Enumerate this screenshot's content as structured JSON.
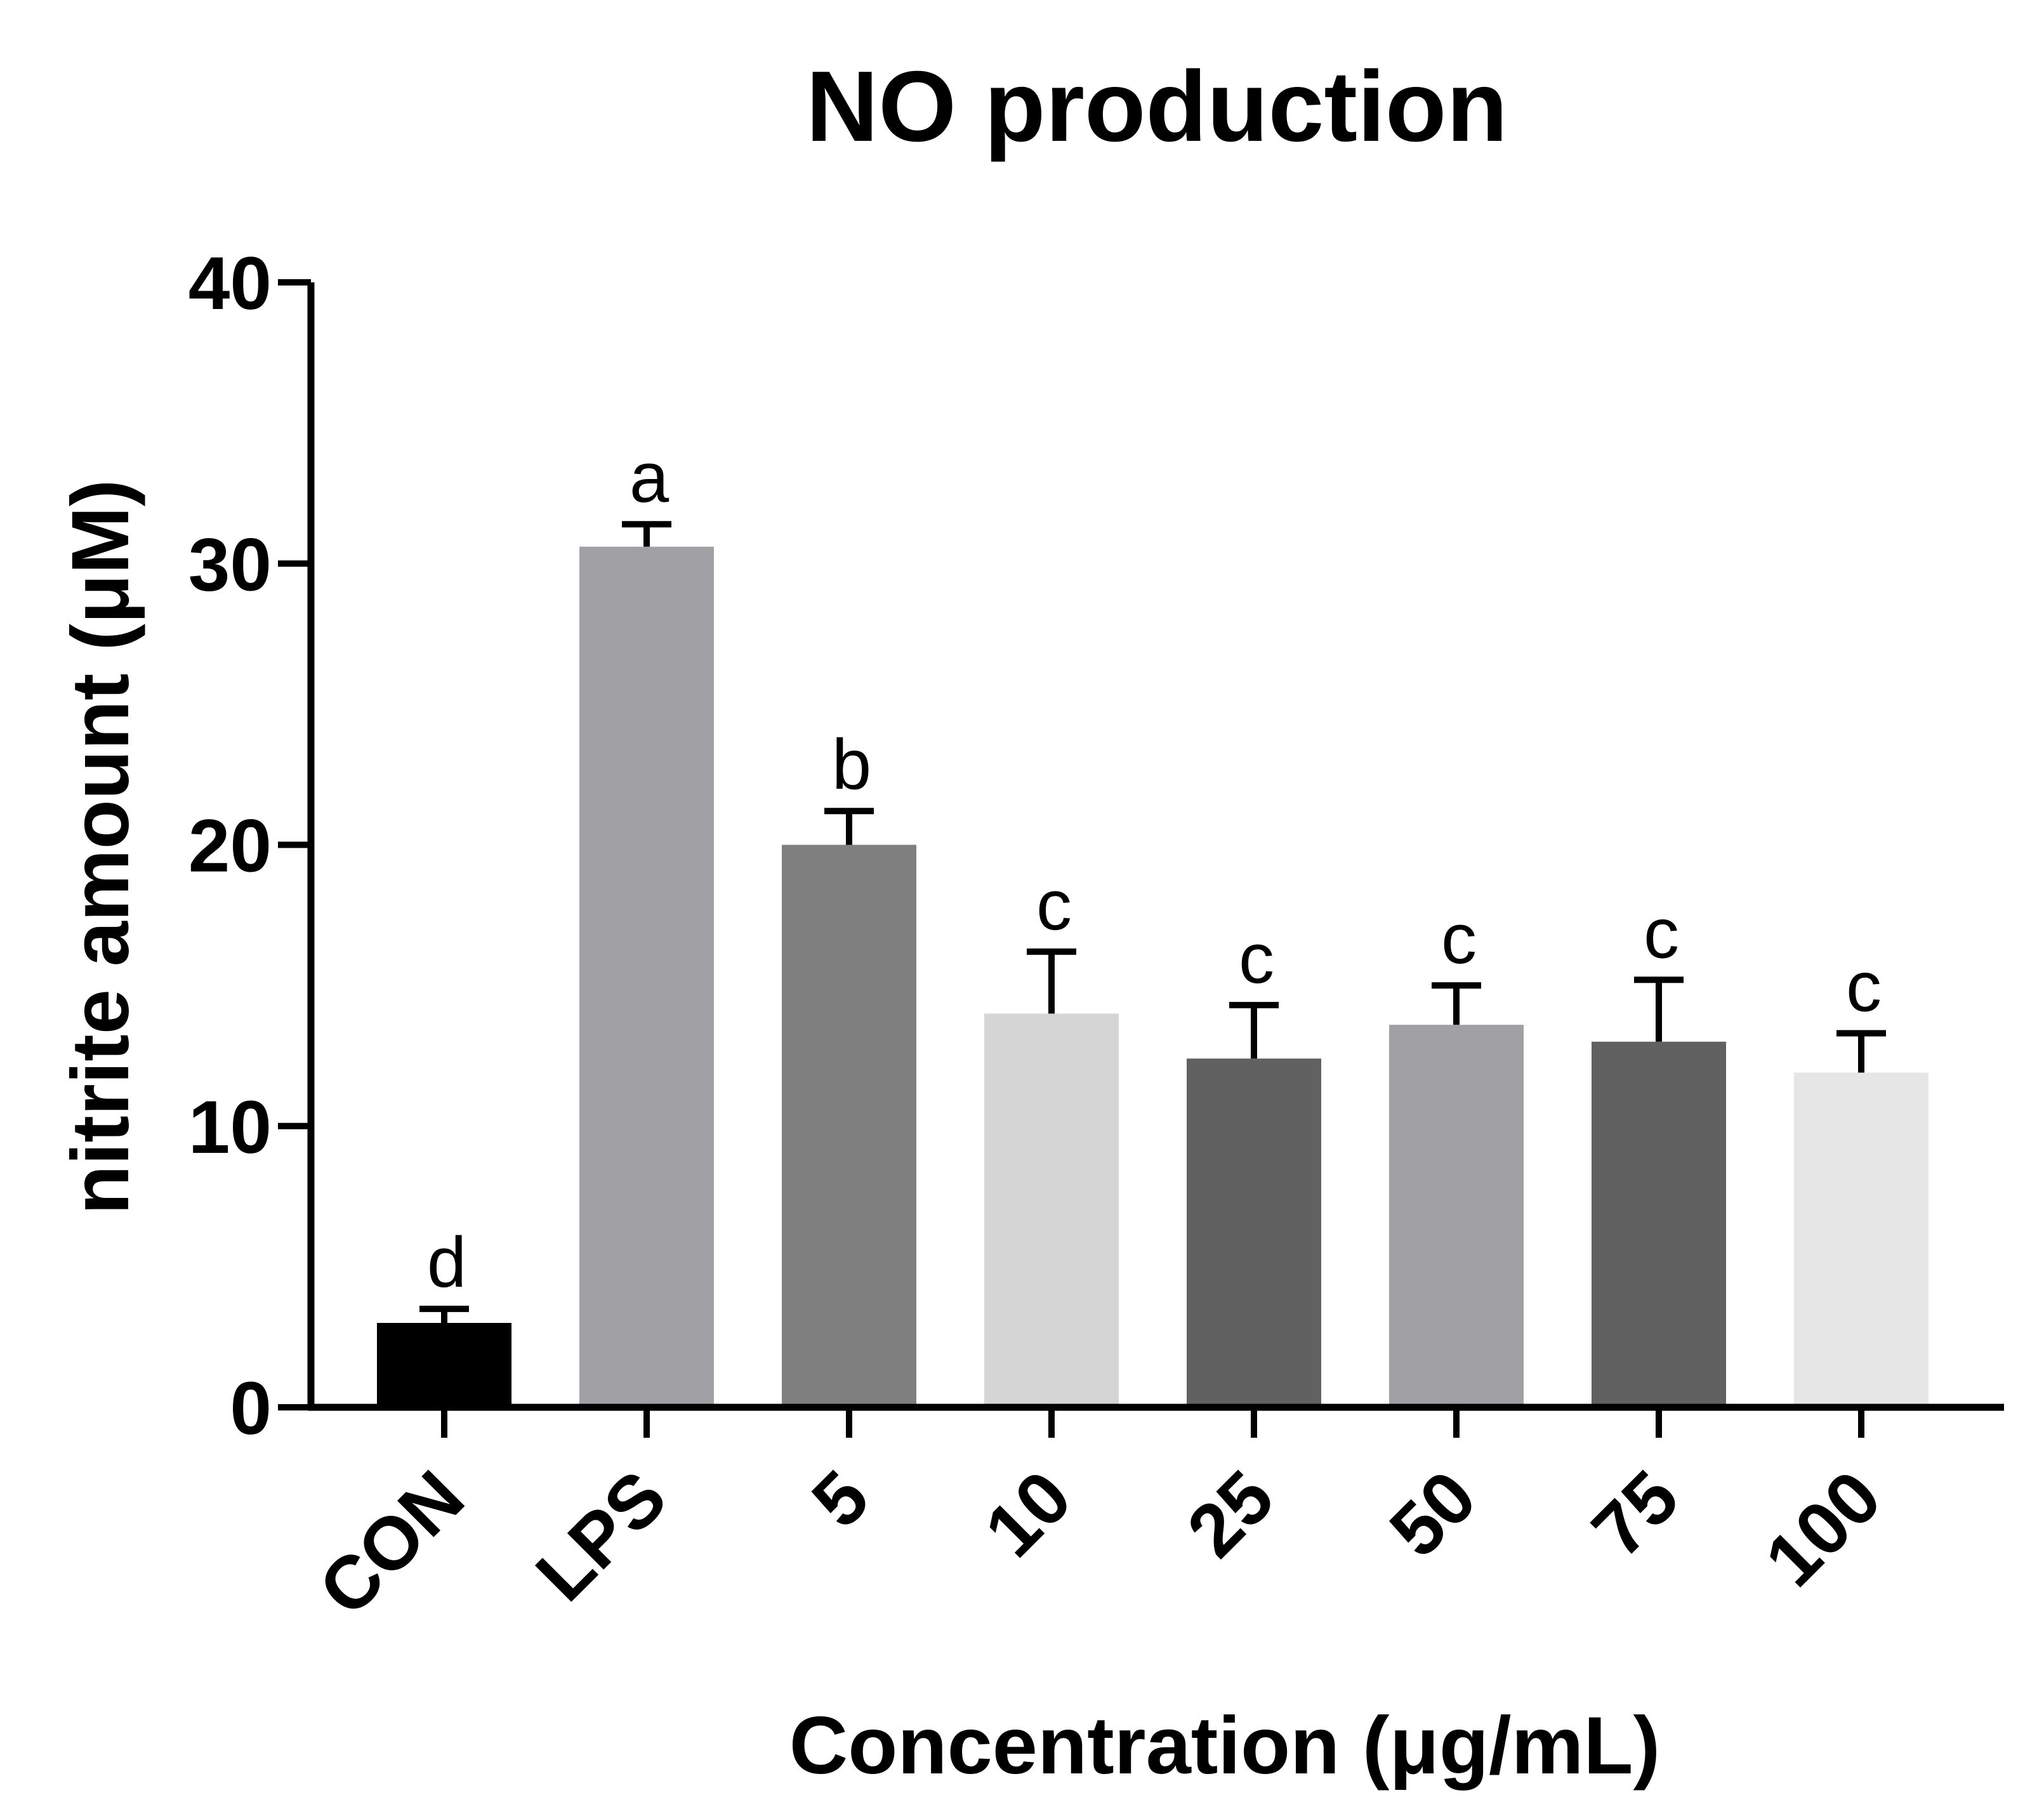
{
  "chart_data": {
    "type": "bar",
    "title": "NO production",
    "xlabel": "Concentration (μg/mL)",
    "ylabel": "nitrite amount (μM)",
    "ylim": [
      0,
      40
    ],
    "yticks": [
      0,
      10,
      20,
      30,
      40
    ],
    "categories": [
      "CON",
      "LPS",
      "5",
      "10",
      "25",
      "50",
      "75",
      "100"
    ],
    "values": [
      3.0,
      30.6,
      20.0,
      14.0,
      12.4,
      13.6,
      13.0,
      11.9
    ],
    "errors": [
      0.5,
      0.8,
      1.2,
      2.2,
      1.9,
      1.4,
      2.2,
      1.4
    ],
    "significance_letters": [
      "d",
      "a",
      "b",
      "c",
      "c",
      "c",
      "c",
      "c"
    ],
    "colors": [
      "#000000",
      "#a1a1a5",
      "#7f7f7f",
      "#d5d5d5",
      "#616161",
      "#a1a1a5",
      "#616161",
      "#e6e6e6"
    ]
  }
}
